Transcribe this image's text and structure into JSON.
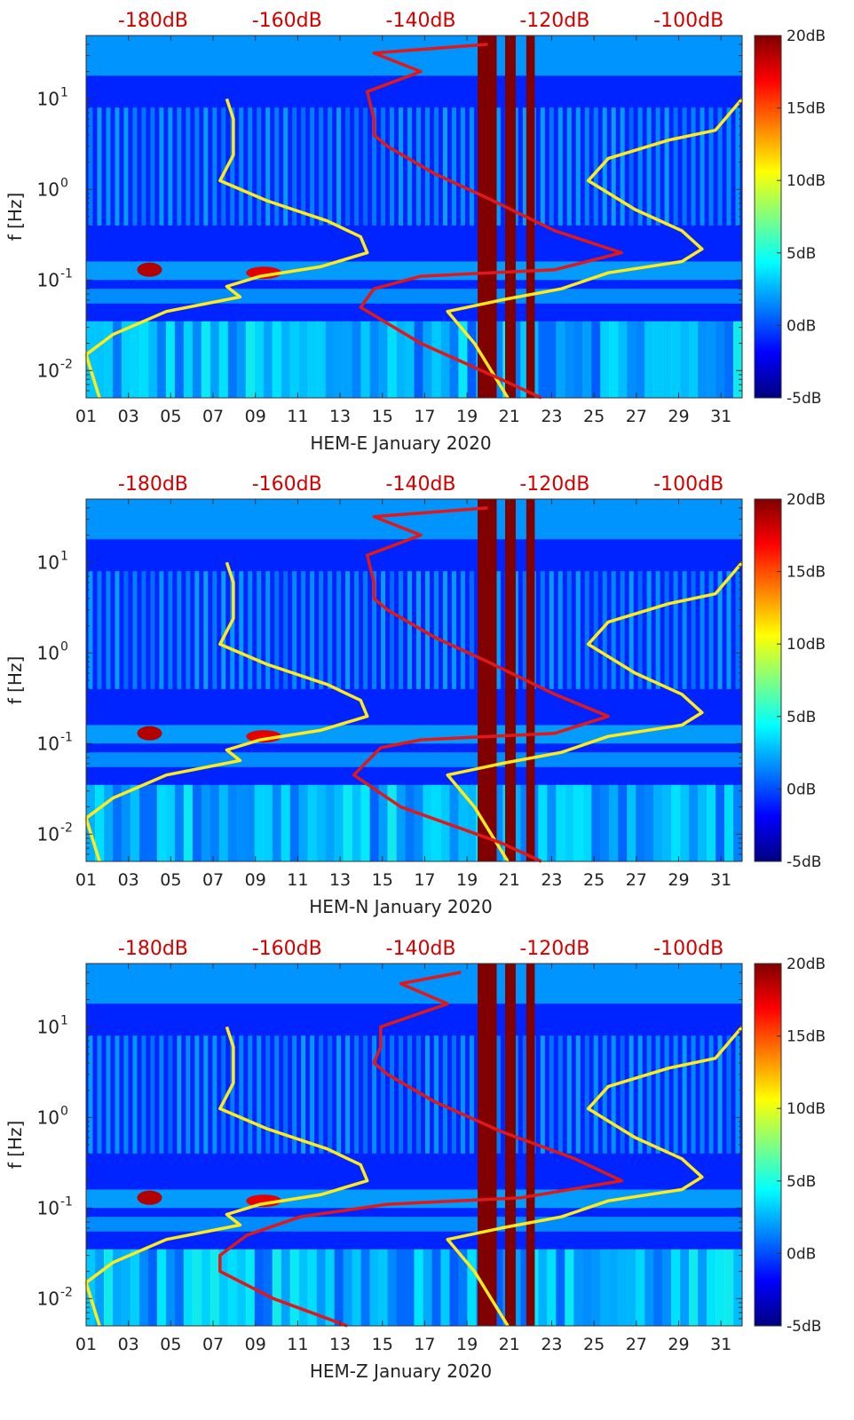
{
  "chart_data": [
    {
      "type": "heatmap",
      "xlabel": "HEM-E January 2020",
      "ylabel": "f [Hz]",
      "x_ticks": [
        "01",
        "03",
        "05",
        "07",
        "09",
        "11",
        "13",
        "15",
        "17",
        "19",
        "21",
        "23",
        "25",
        "27",
        "29",
        "31"
      ],
      "x_range_days": [
        1,
        32
      ],
      "y_scale": "log",
      "y_range_hz": [
        0.005,
        50
      ],
      "y_ticks": [
        {
          "label_base": "10",
          "label_exp": "-2",
          "value": 0.01
        },
        {
          "label_base": "10",
          "label_exp": "-1",
          "value": 0.1
        },
        {
          "label_base": "10",
          "label_exp": "0",
          "value": 1
        },
        {
          "label_base": "10",
          "label_exp": "1",
          "value": 10
        }
      ],
      "top_axis_labels": [
        "-180dB",
        "-160dB",
        "-140dB",
        "-120dB",
        "-100dB"
      ],
      "top_axis_values_db": [
        -180,
        -160,
        -140,
        -120,
        -100
      ],
      "top_axis_range_db": [
        -190,
        -92
      ],
      "colorbar": {
        "labels": [
          "20dB",
          "15dB",
          "10dB",
          "5dB",
          "0dB",
          "-5dB"
        ],
        "values": [
          20,
          15,
          10,
          5,
          0,
          -5
        ],
        "range": [
          -5,
          20
        ]
      },
      "gaps": [
        {
          "from": 19.5,
          "to": 20.4
        },
        {
          "from": 20.8,
          "to": 21.3
        },
        {
          "from": 21.8,
          "to": 22.2
        }
      ],
      "series": [
        {
          "color": "#ffeb1a",
          "points": [
            [
              -169,
              10
            ],
            [
              -168,
              6
            ],
            [
              -168,
              2.4
            ],
            [
              -170,
              1.25
            ],
            [
              -163,
              0.75
            ],
            [
              -154,
              0.45
            ],
            [
              -149,
              0.3
            ],
            [
              -148,
              0.2
            ],
            [
              -155,
              0.14
            ],
            [
              -164,
              0.11
            ],
            [
              -169,
              0.085
            ],
            [
              -167,
              0.065
            ],
            [
              -178,
              0.045
            ],
            [
              -186,
              0.025
            ],
            [
              -190,
              0.015
            ],
            [
              -188,
              0.005
            ]
          ]
        },
        {
          "color": "#ffeb1a",
          "points": [
            [
              -92,
              10
            ],
            [
              -96,
              4.5
            ],
            [
              -103,
              3.5
            ],
            [
              -112,
              2.2
            ],
            [
              -115,
              1.25
            ],
            [
              -108,
              0.6
            ],
            [
              -101,
              0.35
            ],
            [
              -98,
              0.22
            ],
            [
              -101,
              0.16
            ],
            [
              -112,
              0.12
            ],
            [
              -119,
              0.08
            ],
            [
              -128,
              0.06
            ],
            [
              -136,
              0.045
            ],
            [
              -132,
              0.02
            ],
            [
              -127,
              0.005
            ]
          ]
        },
        {
          "color": "#e01818",
          "points": [
            [
              -130,
              40
            ],
            [
              -147,
              32
            ],
            [
              -140,
              20
            ],
            [
              -148,
              12
            ],
            [
              -147,
              6
            ],
            [
              -147,
              4
            ],
            [
              -145,
              3
            ],
            [
              -138,
              1.5
            ],
            [
              -130,
              0.8
            ],
            [
              -120,
              0.35
            ],
            [
              -110,
              0.2
            ],
            [
              -120,
              0.13
            ],
            [
              -140,
              0.11
            ],
            [
              -147,
              0.08
            ],
            [
              -149,
              0.05
            ],
            [
              -140,
              0.02
            ],
            [
              -128,
              0.008
            ],
            [
              -122,
              0.005
            ]
          ]
        }
      ]
    },
    {
      "type": "heatmap",
      "xlabel": "HEM-N January 2020",
      "ylabel": "f [Hz]",
      "x_ticks": [
        "01",
        "03",
        "05",
        "07",
        "09",
        "11",
        "13",
        "15",
        "17",
        "19",
        "21",
        "23",
        "25",
        "27",
        "29",
        "31"
      ],
      "x_range_days": [
        1,
        32
      ],
      "y_scale": "log",
      "y_range_hz": [
        0.005,
        50
      ],
      "y_ticks": [
        {
          "label_base": "10",
          "label_exp": "-2",
          "value": 0.01
        },
        {
          "label_base": "10",
          "label_exp": "-1",
          "value": 0.1
        },
        {
          "label_base": "10",
          "label_exp": "0",
          "value": 1
        },
        {
          "label_base": "10",
          "label_exp": "1",
          "value": 10
        }
      ],
      "top_axis_labels": [
        "-180dB",
        "-160dB",
        "-140dB",
        "-120dB",
        "-100dB"
      ],
      "top_axis_values_db": [
        -180,
        -160,
        -140,
        -120,
        -100
      ],
      "top_axis_range_db": [
        -190,
        -92
      ],
      "colorbar": {
        "labels": [
          "20dB",
          "15dB",
          "10dB",
          "5dB",
          "0dB",
          "-5dB"
        ],
        "values": [
          20,
          15,
          10,
          5,
          0,
          -5
        ],
        "range": [
          -5,
          20
        ]
      },
      "gaps": [
        {
          "from": 19.5,
          "to": 20.4
        },
        {
          "from": 20.8,
          "to": 21.3
        },
        {
          "from": 21.8,
          "to": 22.2
        }
      ],
      "series": [
        {
          "color": "#ffeb1a",
          "points": [
            [
              -169,
              10
            ],
            [
              -168,
              6
            ],
            [
              -168,
              2.4
            ],
            [
              -170,
              1.25
            ],
            [
              -163,
              0.75
            ],
            [
              -154,
              0.45
            ],
            [
              -149,
              0.3
            ],
            [
              -148,
              0.2
            ],
            [
              -155,
              0.14
            ],
            [
              -164,
              0.11
            ],
            [
              -169,
              0.085
            ],
            [
              -167,
              0.065
            ],
            [
              -178,
              0.045
            ],
            [
              -186,
              0.025
            ],
            [
              -190,
              0.015
            ],
            [
              -188,
              0.005
            ]
          ]
        },
        {
          "color": "#ffeb1a",
          "points": [
            [
              -92,
              10
            ],
            [
              -96,
              4.5
            ],
            [
              -103,
              3.5
            ],
            [
              -112,
              2.2
            ],
            [
              -115,
              1.25
            ],
            [
              -108,
              0.6
            ],
            [
              -101,
              0.35
            ],
            [
              -98,
              0.22
            ],
            [
              -101,
              0.16
            ],
            [
              -112,
              0.12
            ],
            [
              -119,
              0.08
            ],
            [
              -128,
              0.06
            ],
            [
              -136,
              0.045
            ],
            [
              -132,
              0.02
            ],
            [
              -127,
              0.005
            ]
          ]
        },
        {
          "color": "#e01818",
          "points": [
            [
              -130,
              40
            ],
            [
              -147,
              32
            ],
            [
              -140,
              20
            ],
            [
              -148,
              12
            ],
            [
              -147,
              6
            ],
            [
              -147,
              4
            ],
            [
              -145,
              3
            ],
            [
              -138,
              1.5
            ],
            [
              -130,
              0.8
            ],
            [
              -120,
              0.35
            ],
            [
              -112,
              0.2
            ],
            [
              -120,
              0.13
            ],
            [
              -140,
              0.11
            ],
            [
              -146,
              0.09
            ],
            [
              -150,
              0.045
            ],
            [
              -143,
              0.02
            ],
            [
              -128,
              0.008
            ],
            [
              -122,
              0.005
            ]
          ]
        }
      ]
    },
    {
      "type": "heatmap",
      "xlabel": "HEM-Z January 2020",
      "ylabel": "f [Hz]",
      "x_ticks": [
        "01",
        "03",
        "05",
        "07",
        "09",
        "11",
        "13",
        "15",
        "17",
        "19",
        "21",
        "23",
        "25",
        "27",
        "29",
        "31"
      ],
      "x_range_days": [
        1,
        32
      ],
      "y_scale": "log",
      "y_range_hz": [
        0.005,
        50
      ],
      "y_ticks": [
        {
          "label_base": "10",
          "label_exp": "-2",
          "value": 0.01
        },
        {
          "label_base": "10",
          "label_exp": "-1",
          "value": 0.1
        },
        {
          "label_base": "10",
          "label_exp": "0",
          "value": 1
        },
        {
          "label_base": "10",
          "label_exp": "1",
          "value": 10
        }
      ],
      "top_axis_labels": [
        "-180dB",
        "-160dB",
        "-140dB",
        "-120dB",
        "-100dB"
      ],
      "top_axis_values_db": [
        -180,
        -160,
        -140,
        -120,
        -100
      ],
      "top_axis_range_db": [
        -190,
        -92
      ],
      "colorbar": {
        "labels": [
          "20dB",
          "15dB",
          "10dB",
          "5dB",
          "0dB",
          "-5dB"
        ],
        "values": [
          20,
          15,
          10,
          5,
          0,
          -5
        ],
        "range": [
          -5,
          20
        ]
      },
      "gaps": [
        {
          "from": 19.5,
          "to": 20.4
        },
        {
          "from": 20.8,
          "to": 21.3
        },
        {
          "from": 21.8,
          "to": 22.2
        }
      ],
      "series": [
        {
          "color": "#ffeb1a",
          "points": [
            [
              -169,
              10
            ],
            [
              -168,
              6
            ],
            [
              -168,
              2.4
            ],
            [
              -170,
              1.25
            ],
            [
              -163,
              0.75
            ],
            [
              -154,
              0.45
            ],
            [
              -149,
              0.3
            ],
            [
              -148,
              0.2
            ],
            [
              -155,
              0.14
            ],
            [
              -164,
              0.11
            ],
            [
              -169,
              0.085
            ],
            [
              -167,
              0.065
            ],
            [
              -178,
              0.045
            ],
            [
              -186,
              0.025
            ],
            [
              -190,
              0.015
            ],
            [
              -188,
              0.005
            ]
          ]
        },
        {
          "color": "#ffeb1a",
          "points": [
            [
              -92,
              10
            ],
            [
              -96,
              4.5
            ],
            [
              -103,
              3.5
            ],
            [
              -112,
              2.2
            ],
            [
              -115,
              1.25
            ],
            [
              -108,
              0.6
            ],
            [
              -101,
              0.35
            ],
            [
              -98,
              0.22
            ],
            [
              -101,
              0.16
            ],
            [
              -112,
              0.12
            ],
            [
              -119,
              0.08
            ],
            [
              -128,
              0.06
            ],
            [
              -136,
              0.045
            ],
            [
              -132,
              0.02
            ],
            [
              -127,
              0.005
            ]
          ]
        },
        {
          "color": "#e01818",
          "points": [
            [
              -134,
              40
            ],
            [
              -143,
              30
            ],
            [
              -136,
              18
            ],
            [
              -146,
              10
            ],
            [
              -146,
              6
            ],
            [
              -147,
              4
            ],
            [
              -145,
              3
            ],
            [
              -138,
              1.5
            ],
            [
              -128,
              0.7
            ],
            [
              -117,
              0.35
            ],
            [
              -110,
              0.2
            ],
            [
              -125,
              0.13
            ],
            [
              -145,
              0.11
            ],
            [
              -158,
              0.08
            ],
            [
              -166,
              0.05
            ],
            [
              -170,
              0.03
            ],
            [
              -170,
              0.02
            ],
            [
              -162,
              0.01
            ],
            [
              -151,
              0.005
            ]
          ]
        }
      ]
    }
  ]
}
